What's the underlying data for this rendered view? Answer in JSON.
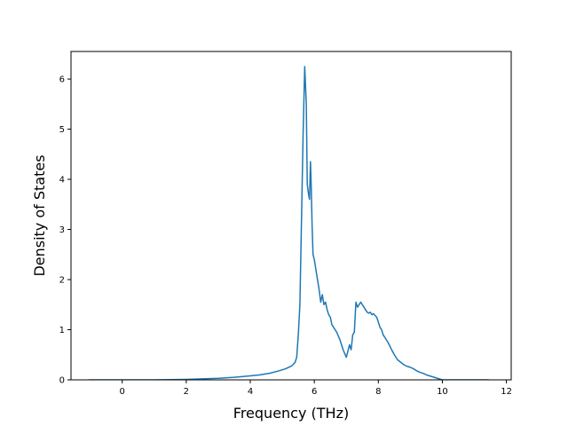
{
  "chart_data": {
    "type": "line",
    "title": "",
    "xlabel": "Frequency (THz)",
    "ylabel": "Density of States",
    "xlim": [
      -1.6,
      12.15
    ],
    "ylim": [
      0,
      6.55
    ],
    "xticks": [
      0,
      2,
      4,
      6,
      8,
      10,
      12
    ],
    "yticks": [
      0,
      1,
      2,
      3,
      4,
      5,
      6
    ],
    "grid": false,
    "legend": "none",
    "series": [
      {
        "color": "#1f77b4",
        "x": [
          -1.05,
          -0.5,
          0.0,
          0.5,
          1.0,
          1.5,
          2.0,
          2.5,
          3.0,
          3.5,
          4.0,
          4.3,
          4.6,
          4.9,
          5.1,
          5.3,
          5.4,
          5.45,
          5.5,
          5.55,
          5.6,
          5.65,
          5.7,
          5.75,
          5.78,
          5.82,
          5.85,
          5.88,
          5.9,
          5.93,
          5.96,
          6.0,
          6.05,
          6.1,
          6.15,
          6.2,
          6.25,
          6.3,
          6.35,
          6.4,
          6.45,
          6.5,
          6.55,
          6.6,
          6.65,
          6.7,
          6.8,
          6.9,
          7.0,
          7.1,
          7.15,
          7.2,
          7.25,
          7.3,
          7.35,
          7.4,
          7.45,
          7.5,
          7.55,
          7.6,
          7.65,
          7.7,
          7.75,
          7.8,
          7.85,
          7.9,
          7.95,
          8.0,
          8.05,
          8.1,
          8.15,
          8.2,
          8.3,
          8.4,
          8.5,
          8.6,
          8.7,
          8.8,
          8.9,
          9.0,
          9.1,
          9.2,
          9.3,
          9.4,
          9.5,
          9.6,
          9.7,
          9.8,
          9.9,
          10.0,
          10.1,
          10.2,
          10.3,
          10.4,
          10.5,
          10.7,
          11.0,
          11.3,
          11.45
        ],
        "y": [
          0.0,
          0.0,
          0.0,
          0.0,
          0.0,
          0.005,
          0.01,
          0.02,
          0.03,
          0.05,
          0.08,
          0.1,
          0.13,
          0.18,
          0.22,
          0.28,
          0.35,
          0.45,
          0.9,
          1.5,
          3.2,
          4.9,
          6.25,
          5.5,
          3.9,
          3.7,
          3.6,
          4.35,
          3.95,
          3.1,
          2.5,
          2.4,
          2.2,
          2.0,
          1.8,
          1.55,
          1.7,
          1.5,
          1.55,
          1.4,
          1.3,
          1.25,
          1.1,
          1.05,
          1.0,
          0.95,
          0.8,
          0.6,
          0.45,
          0.7,
          0.6,
          0.9,
          0.95,
          1.55,
          1.45,
          1.5,
          1.55,
          1.5,
          1.45,
          1.4,
          1.35,
          1.33,
          1.35,
          1.3,
          1.32,
          1.28,
          1.25,
          1.15,
          1.05,
          1.0,
          0.9,
          0.85,
          0.75,
          0.62,
          0.5,
          0.4,
          0.35,
          0.3,
          0.27,
          0.25,
          0.22,
          0.18,
          0.15,
          0.13,
          0.1,
          0.08,
          0.06,
          0.04,
          0.02,
          0.0,
          0.0,
          0.0,
          0.0,
          0.0,
          0.0,
          0.0,
          0.0,
          0.0,
          0.0
        ]
      }
    ]
  }
}
